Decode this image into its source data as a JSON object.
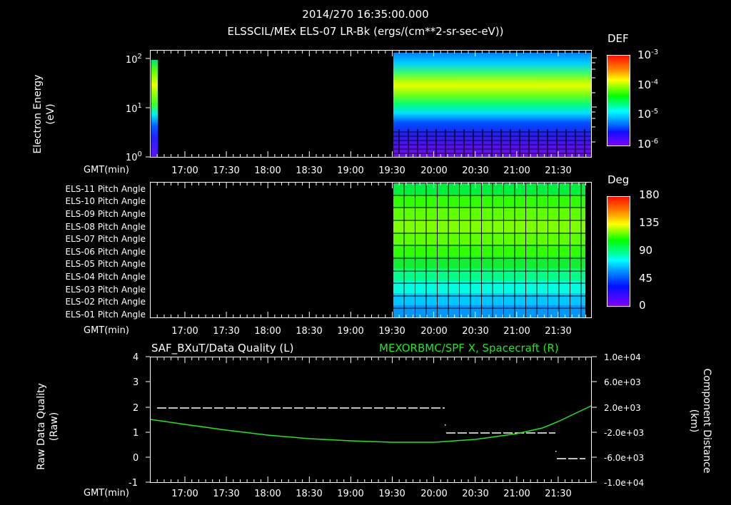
{
  "header": {
    "timestamp": "2014/270 16:35:00.000",
    "subtitle": "ELSSCIL/MEx ELS-07 LR-Bk   (ergs/(cm**2-sr-sec-eV))"
  },
  "time_axis": {
    "label": "GMT(min)",
    "ticks": [
      "17:00",
      "17:30",
      "18:00",
      "18:30",
      "19:00",
      "19:30",
      "20:00",
      "20:30",
      "21:00",
      "21:30"
    ]
  },
  "panel1": {
    "ylabel_line1": "Electron Energy",
    "ylabel_line2": "(eV)",
    "yticks": [
      {
        "base": "10",
        "exp": "2"
      },
      {
        "base": "10",
        "exp": "1"
      },
      {
        "base": "10",
        "exp": "0"
      }
    ],
    "colorbar": {
      "title": "DEF",
      "ticks": [
        {
          "base": "10",
          "exp": "-3"
        },
        {
          "base": "10",
          "exp": "-4"
        },
        {
          "base": "10",
          "exp": "-5"
        },
        {
          "base": "10",
          "exp": "-6"
        }
      ]
    }
  },
  "panel2": {
    "rows": [
      "ELS-11 Pitch Angle",
      "ELS-10 Pitch Angle",
      "ELS-09 Pitch Angle",
      "ELS-08 Pitch Angle",
      "ELS-07 Pitch Angle",
      "ELS-06 Pitch Angle",
      "ELS-05 Pitch Angle",
      "ELS-04 Pitch Angle",
      "ELS-03 Pitch Angle",
      "ELS-02 Pitch Angle",
      "ELS-01 Pitch Angle"
    ],
    "colorbar": {
      "title": "Deg",
      "ticks": [
        "180",
        "135",
        "90",
        "45",
        "0"
      ]
    }
  },
  "panel3": {
    "left_title": "SAF_BXuT/Data Quality (L)",
    "right_title": "MEXORBMC/SPF X, Spacecraft (R)",
    "right_title_color": "#22e622",
    "ylabel_left_line1": "Raw Data Quality",
    "ylabel_left_line2": "(Raw)",
    "ylabel_right_line1": "Component Distance",
    "ylabel_right_line2": "(km)",
    "yticks_left": [
      "4",
      "3",
      "2",
      "1",
      "0",
      "-1"
    ],
    "yticks_right": [
      "1.0e+04",
      "6.0e+03",
      "2.0e+03",
      "-2.0e+03",
      "-6.0e+03",
      "-1.0e+04"
    ]
  },
  "chart_data": [
    {
      "type": "heatmap",
      "title": "ELSSCIL/MEx ELS-07 LR-Bk (ergs/(cm**2-sr-sec-eV))",
      "xlabel": "GMT(min)",
      "ylabel": "Electron Energy (eV)",
      "x_range": [
        "16:35",
        "21:58"
      ],
      "y_scale": "log",
      "ylim": [
        1,
        150
      ],
      "colorbar": {
        "label": "DEF",
        "scale": "log",
        "range": [
          1e-06,
          0.001
        ]
      },
      "data_segments": [
        {
          "start": "16:35",
          "end": "16:41",
          "note": "peak ~30-60 eV green/yellow, low energies blue/purple"
        },
        {
          "start": "19:29",
          "end": "21:58",
          "note": "broad green/yellow band ~20-60 eV (DEF ~1e-4), decreasing toward end; low energies <5 eV purple with gaps"
        }
      ]
    },
    {
      "type": "heatmap",
      "title": "ELS Pitch Angles",
      "xlabel": "GMT(min)",
      "categories": [
        "ELS-11",
        "ELS-10",
        "ELS-09",
        "ELS-08",
        "ELS-07",
        "ELS-06",
        "ELS-05",
        "ELS-04",
        "ELS-03",
        "ELS-02",
        "ELS-01"
      ],
      "colorbar": {
        "label": "Deg",
        "range": [
          0,
          180
        ]
      },
      "data_range": [
        "19:29",
        "21:55"
      ],
      "approx_pitch_angle_deg": [
        100,
        108,
        118,
        125,
        118,
        108,
        100,
        85,
        70,
        58,
        48
      ]
    },
    {
      "type": "line",
      "title_left": "SAF_BXuT/Data Quality (L)",
      "title_right": "MEXORBMC/SPF X, Spacecraft (R)",
      "xlabel": "GMT(min)",
      "ylabel_left": "Raw Data Quality (Raw)",
      "ylabel_right": "Component Distance (km)",
      "ylim_left": [
        -1,
        4
      ],
      "ylim_right": [
        -10000,
        10000
      ],
      "series": [
        {
          "name": "Data Quality",
          "axis": "left",
          "color": "#ffffff",
          "style": "dashed",
          "x": [
            "16:41",
            "20:05",
            "20:06",
            "21:15",
            "21:30",
            "21:55"
          ],
          "y": [
            2,
            2,
            1,
            1,
            0,
            0
          ]
        },
        {
          "name": "SPF X, Spacecraft",
          "axis": "right",
          "color": "#22e622",
          "x": [
            "16:35",
            "17:00",
            "17:30",
            "18:00",
            "18:30",
            "19:00",
            "19:30",
            "20:00",
            "20:30",
            "21:00",
            "21:30",
            "21:58"
          ],
          "y": [
            2200,
            1000,
            -400,
            -1700,
            -2800,
            -3600,
            -4000,
            -3900,
            -3200,
            -1800,
            200,
            2200
          ]
        }
      ]
    }
  ]
}
